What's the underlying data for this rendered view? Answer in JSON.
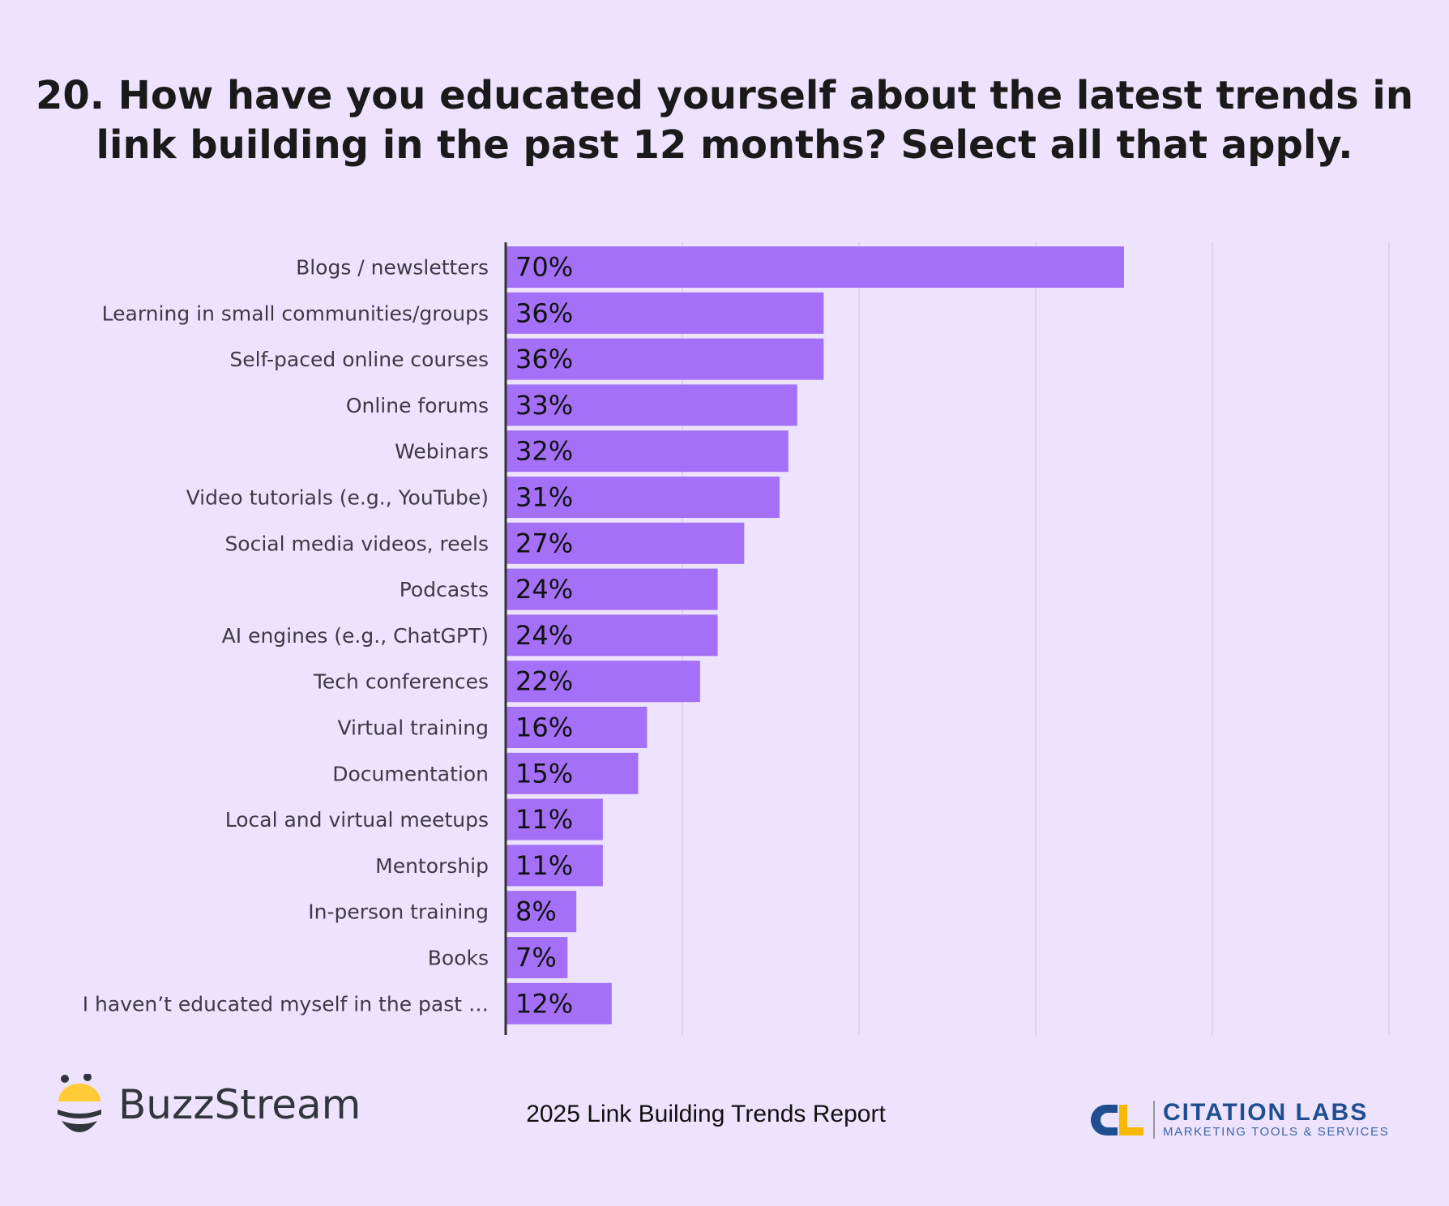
{
  "chart_data": {
    "type": "bar",
    "orientation": "horizontal",
    "title": "20. How have you educated yourself about the latest trends in link building in the past 12 months? Select all that apply.",
    "categories": [
      "Blogs / newsletters",
      "Learning in small communities/groups",
      "Self-paced online courses",
      "Online forums",
      "Webinars",
      "Video tutorials (e.g., YouTube)",
      "Social media videos, reels",
      "Podcasts",
      "AI engines (e.g., ChatGPT)",
      "Tech conferences",
      "Virtual training",
      "Documentation",
      "Local and virtual meetups",
      "Mentorship",
      "In-person training",
      "Books",
      "I haven’t educated myself in the past …"
    ],
    "values": [
      70,
      36,
      36,
      33,
      32,
      31,
      27,
      24,
      24,
      22,
      16,
      15,
      11,
      11,
      8,
      7,
      12
    ],
    "value_labels": [
      "70%",
      "36%",
      "36%",
      "33%",
      "32%",
      "31%",
      "27%",
      "24%",
      "24%",
      "22%",
      "16%",
      "15%",
      "11%",
      "11%",
      "8%",
      "7%",
      "12%"
    ],
    "xlim": [
      0,
      100
    ],
    "gridlines_at": [
      20,
      40,
      60,
      80,
      100
    ],
    "grid": true,
    "bar_color": "#a370f7",
    "background_color": "#ede3fe"
  },
  "footer": {
    "report_title": "2025 Link Building Trends Report",
    "left_logo": "BuzzStream",
    "right_logo_name": "CITATION LABS",
    "right_logo_tagline": "MARKETING TOOLS & SERVICES"
  }
}
